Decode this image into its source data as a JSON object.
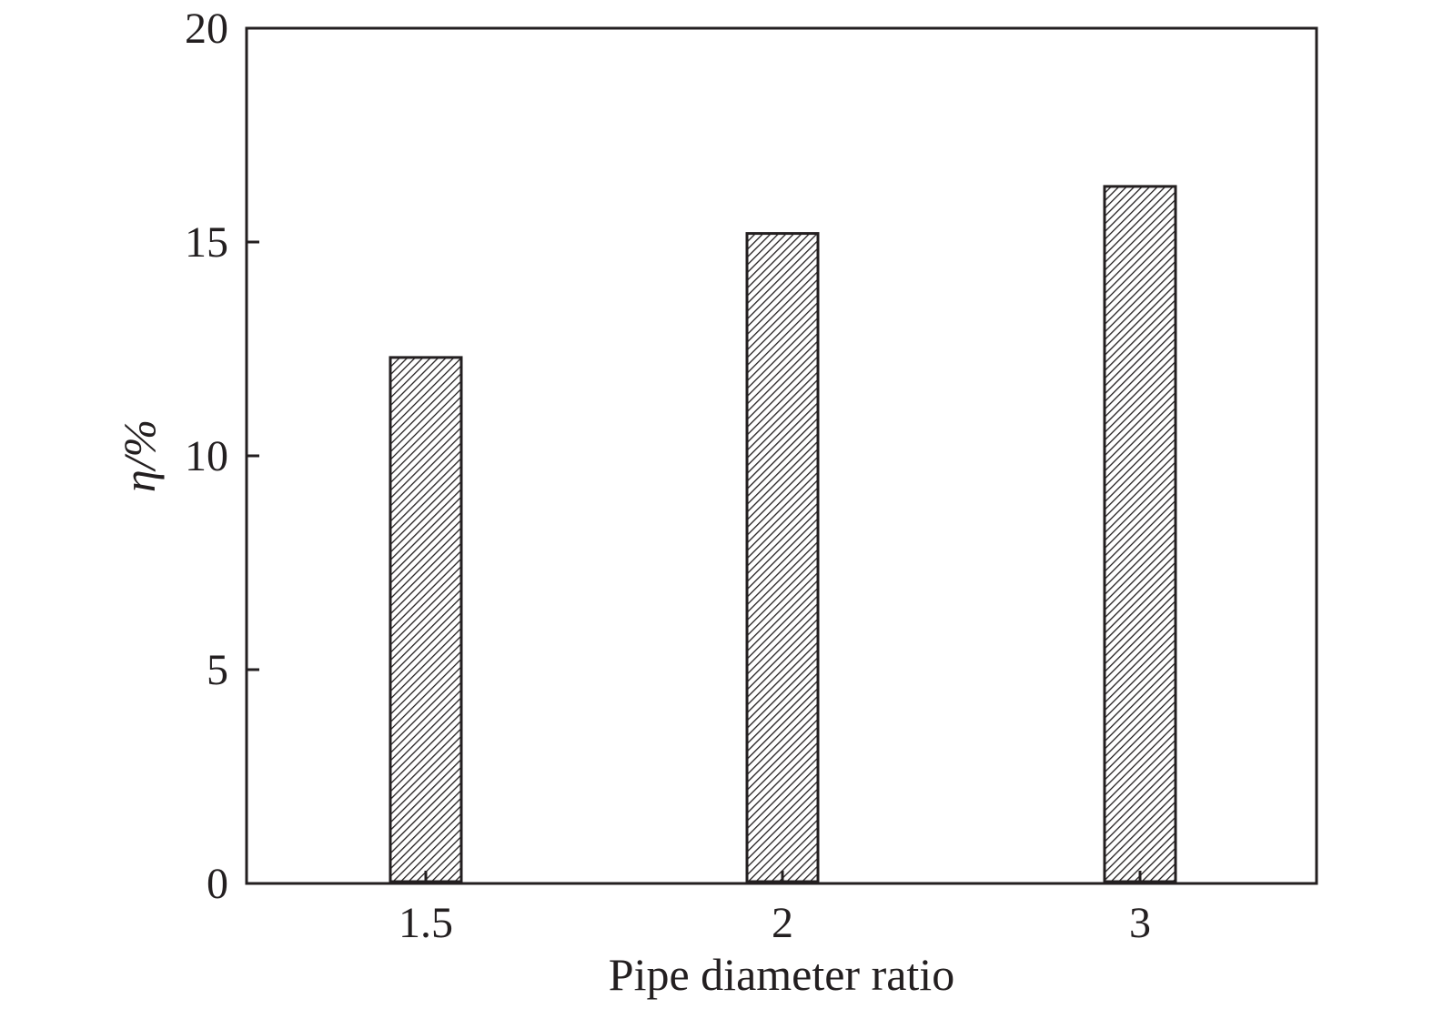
{
  "chart_data": {
    "type": "bar",
    "categories": [
      "1.5",
      "2",
      "3"
    ],
    "values": [
      12.3,
      15.2,
      16.3
    ],
    "xlabel": "Pipe diameter ratio",
    "ylabel": "η/%",
    "ylim": [
      0,
      20
    ],
    "yticks": [
      "0",
      "5",
      "10",
      "15",
      "20"
    ],
    "grid": false,
    "legend": "none",
    "bar_fill": "diagonal-hatch",
    "colors": {
      "axis": "#231f20",
      "bar_hatch": "#231f20",
      "bar_background": "#ffffff"
    }
  }
}
